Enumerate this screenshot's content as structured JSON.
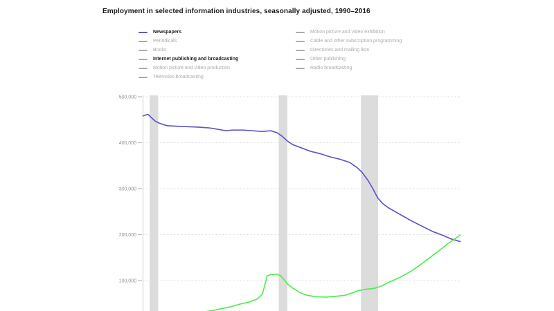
{
  "title": "Employment in selected information industries, seasonally adjusted, 1990–2016",
  "colors": {
    "background": "#ffffff",
    "newspapers_line": "#5d58c9",
    "internet_line": "#4fee4f",
    "inactive_legend": "#ababab",
    "recession_band": "#dcdcdc",
    "gridline": "#dbdbdb",
    "axis": "#cccccc",
    "tick": "#bbbbbb",
    "tick_label": "#8f8f8f",
    "title_text": "#1a1a1a"
  },
  "legend": {
    "columns": [
      {
        "items": [
          {
            "id": "newspapers",
            "label": "Newspapers",
            "color": "#5d58c9",
            "active": true
          },
          {
            "id": "periodicals",
            "label": "Periodicals",
            "color": "#ababab",
            "active": false
          },
          {
            "id": "books",
            "label": "Books",
            "color": "#ababab",
            "active": false
          },
          {
            "id": "internet-publishing-and-broadcasting",
            "label": "Internet publishing and broadcasting",
            "color": "#4fee4f",
            "active": true
          },
          {
            "id": "motion-picture-and-video-production",
            "label": "Motion picture and video production",
            "color": "#ababab",
            "active": false
          },
          {
            "id": "television-broadcasting",
            "label": "Television broadcasting",
            "color": "#ababab",
            "active": false
          }
        ]
      },
      {
        "items": [
          {
            "id": "motion-picture-and-video-exhibition",
            "label": "Motion picture and video exhibition",
            "color": "#ababab",
            "active": false
          },
          {
            "id": "cable-and-other-subscription-programming",
            "label": "Cable and other subscription programming",
            "color": "#ababab",
            "active": false
          },
          {
            "id": "directories-and-mailing-lists",
            "label": "Directories and mailing lists",
            "color": "#ababab",
            "active": false
          },
          {
            "id": "other-publishing",
            "label": "Other publishing",
            "color": "#ababab",
            "active": false
          },
          {
            "id": "radio-broadcasting",
            "label": "Radio broadcasting",
            "color": "#ababab",
            "active": false
          }
        ]
      }
    ]
  },
  "chart_data": {
    "type": "line",
    "title": "Employment in selected information industries, seasonally adjusted, 1990–2016",
    "x_unit": "year",
    "x_range": [
      1990,
      2016.11
    ],
    "ylim": [
      33800,
      500000
    ],
    "grid": "horizontal-dotted",
    "legend_position": "top",
    "y_ticks": [
      {
        "value": 500000,
        "label": "500,000"
      },
      {
        "value": 400000,
        "label": "400,000"
      },
      {
        "value": 300000,
        "label": "300,000"
      },
      {
        "value": 200000,
        "label": "200,000"
      },
      {
        "value": 100000,
        "label": "100,000"
      }
    ],
    "recession_bands": [
      {
        "start": 1990.54,
        "end": 1991.25
      },
      {
        "start": 2001.17,
        "end": 2001.87
      },
      {
        "start": 2007.92,
        "end": 2009.33
      }
    ],
    "series": [
      {
        "id": "newspapers",
        "name": "Newspapers",
        "color": "#5d58c9",
        "shown": true,
        "points": [
          [
            1990.0,
            458000
          ],
          [
            1990.17,
            460000
          ],
          [
            1990.42,
            461500
          ],
          [
            1990.75,
            453000
          ],
          [
            1991.0,
            447000
          ],
          [
            1991.3,
            443000
          ],
          [
            1991.5,
            441000
          ],
          [
            1992.0,
            437000
          ],
          [
            1992.7,
            436000
          ],
          [
            1993.5,
            435000
          ],
          [
            1994.5,
            434000
          ],
          [
            1995.5,
            432000
          ],
          [
            1996.2,
            429000
          ],
          [
            1996.8,
            426000
          ],
          [
            1997.4,
            427500
          ],
          [
            1998.2,
            427500
          ],
          [
            1999.0,
            426000
          ],
          [
            1999.8,
            424500
          ],
          [
            2000.5,
            426000
          ],
          [
            2001.0,
            422000
          ],
          [
            2001.4,
            415000
          ],
          [
            2001.9,
            403000
          ],
          [
            2002.3,
            396000
          ],
          [
            2003.0,
            389000
          ],
          [
            2003.8,
            381000
          ],
          [
            2004.6,
            376000
          ],
          [
            2005.4,
            369000
          ],
          [
            2006.2,
            364000
          ],
          [
            2007.0,
            357000
          ],
          [
            2007.6,
            346000
          ],
          [
            2008.0,
            336000
          ],
          [
            2008.5,
            318000
          ],
          [
            2008.9,
            300000
          ],
          [
            2009.3,
            280000
          ],
          [
            2009.7,
            268000
          ],
          [
            2010.2,
            258000
          ],
          [
            2011.0,
            246000
          ],
          [
            2012.0,
            231000
          ],
          [
            2012.9,
            219000
          ],
          [
            2013.8,
            207000
          ],
          [
            2014.7,
            198000
          ],
          [
            2015.3,
            191000
          ],
          [
            2015.8,
            187000
          ],
          [
            2016.08,
            185000
          ]
        ]
      },
      {
        "id": "internet-publishing-and-broadcasting",
        "name": "Internet publishing and broadcasting",
        "color": "#4fee4f",
        "shown": true,
        "points": [
          [
            1993.0,
            28000
          ],
          [
            1994.0,
            30000
          ],
          [
            1995.0,
            32000
          ],
          [
            1995.8,
            35000
          ],
          [
            1996.5,
            39000
          ],
          [
            1997.2,
            43000
          ],
          [
            1998.0,
            49000
          ],
          [
            1998.8,
            54000
          ],
          [
            1999.4,
            60000
          ],
          [
            1999.8,
            70000
          ],
          [
            2000.0,
            88000
          ],
          [
            2000.2,
            110000
          ],
          [
            2000.5,
            113000
          ],
          [
            2001.0,
            114000
          ],
          [
            2001.3,
            111000
          ],
          [
            2001.6,
            102000
          ],
          [
            2001.9,
            92000
          ],
          [
            2002.3,
            84000
          ],
          [
            2002.9,
            74000
          ],
          [
            2003.5,
            68000
          ],
          [
            2004.2,
            65000
          ],
          [
            2005.0,
            64000
          ],
          [
            2005.8,
            65500
          ],
          [
            2006.6,
            68000
          ],
          [
            2007.2,
            73000
          ],
          [
            2007.7,
            78000
          ],
          [
            2008.3,
            81000
          ],
          [
            2009.0,
            83000
          ],
          [
            2009.6,
            88000
          ],
          [
            2010.1,
            95000
          ],
          [
            2010.8,
            103000
          ],
          [
            2011.5,
            112000
          ],
          [
            2012.2,
            123000
          ],
          [
            2012.9,
            136000
          ],
          [
            2013.6,
            150000
          ],
          [
            2014.3,
            164000
          ],
          [
            2015.0,
            179000
          ],
          [
            2015.5,
            188000
          ],
          [
            2016.08,
            199000
          ]
        ]
      },
      {
        "id": "periodicals",
        "name": "Periodicals",
        "shown": false
      },
      {
        "id": "books",
        "name": "Books",
        "shown": false
      },
      {
        "id": "motion-picture-and-video-production",
        "name": "Motion picture and video production",
        "shown": false
      },
      {
        "id": "television-broadcasting",
        "name": "Television broadcasting",
        "shown": false
      },
      {
        "id": "motion-picture-and-video-exhibition",
        "name": "Motion picture and video exhibition",
        "shown": false
      },
      {
        "id": "cable-and-other-subscription-programming",
        "name": "Cable and other subscription programming",
        "shown": false
      },
      {
        "id": "directories-and-mailing-lists",
        "name": "Directories and mailing lists",
        "shown": false
      },
      {
        "id": "other-publishing",
        "name": "Other publishing",
        "shown": false
      },
      {
        "id": "radio-broadcasting",
        "name": "Radio broadcasting",
        "shown": false
      }
    ]
  }
}
